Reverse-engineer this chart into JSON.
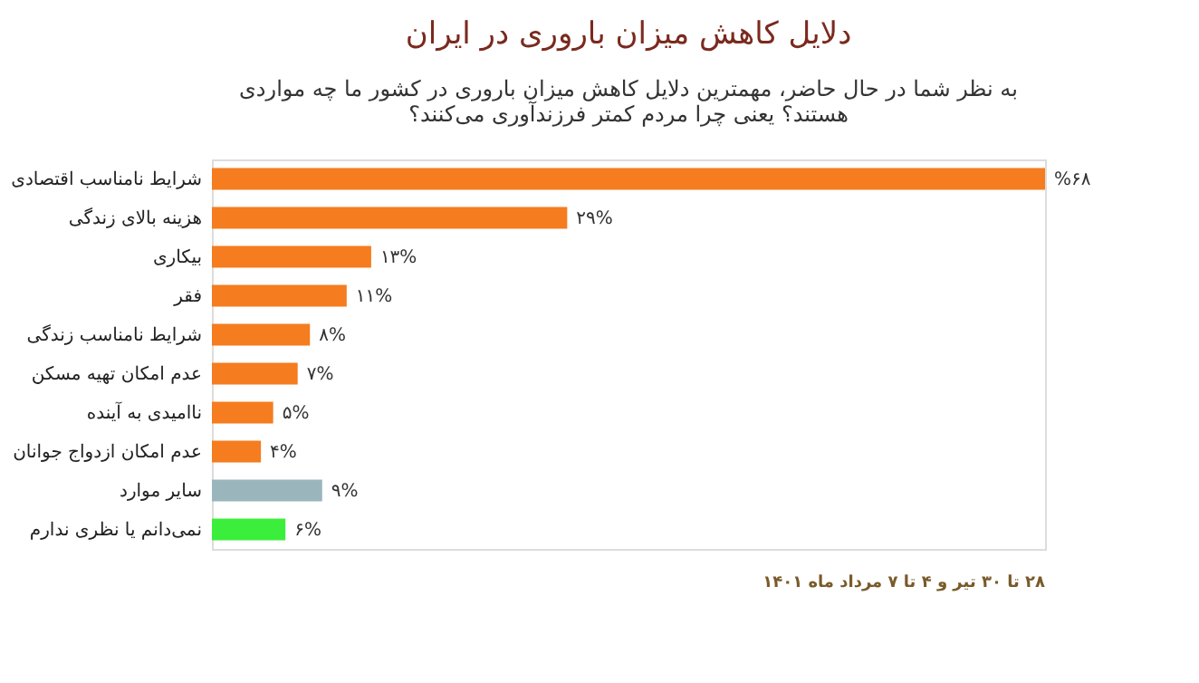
{
  "chart_data": {
    "type": "bar",
    "orientation": "horizontal",
    "title": "دلایل کاهش میزان باروری در ایران",
    "subtitle": "به نظر شما در حال حاضر، مهمترین دلایل کاهش میزان باروری در کشور ما چه مواردی\nهستند؟ یعنی چرا مردم کمتر فرزندآوری می‌کنند؟",
    "categories": [
      "شرایط نامناسب اقتصادی",
      "هزینه بالای زندگی",
      "بیکاری",
      "فقر",
      "شرایط نامناسب زندگی",
      "عدم امکان تهیه مسکن",
      "ناامیدی به آینده",
      "عدم امکان ازدواج جوانان",
      "سایر موارد",
      "نمی‌دانم یا نظری ندارم"
    ],
    "values": [
      68,
      29,
      13,
      11,
      8,
      7,
      5,
      4,
      9,
      6
    ],
    "value_labels": [
      "%۶۸",
      "۲۹%",
      "۱۳%",
      "۱۱%",
      "۸%",
      "۷%",
      "۵%",
      "۴%",
      "۹%",
      "۶%"
    ],
    "colors": [
      "#f57c1f",
      "#f57c1f",
      "#f57c1f",
      "#f57c1f",
      "#f57c1f",
      "#f57c1f",
      "#f57c1f",
      "#f57c1f",
      "#9bb5bd",
      "#3cee3c"
    ],
    "annotations": [
      "۲۸ تا ۳۰ تیر و ۴ تا ۷ مرداد ماه ۱۴۰۱"
    ],
    "grid": false,
    "legend": false
  }
}
